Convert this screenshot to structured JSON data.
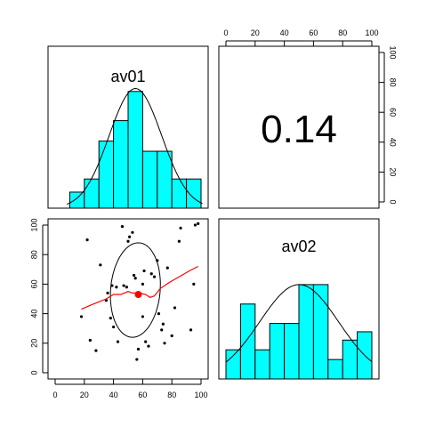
{
  "chart_data": {
    "type": "pairs",
    "variables": [
      "av01",
      "av02"
    ],
    "correlation": {
      "label": "0.14",
      "value": 0.14
    },
    "tick_values": [
      0,
      20,
      40,
      60,
      80,
      100
    ],
    "axis_range": [
      0,
      100
    ],
    "colors": {
      "histogram_fill": "#00ffff",
      "smooth": "#ff0000",
      "centroid": "#ff0000",
      "points": "#000000"
    },
    "histograms": [
      {
        "variable": "av01",
        "breaks": [
          10,
          20,
          30,
          40,
          50,
          60,
          70,
          80,
          90,
          100
        ],
        "heights": [
          0.11,
          0.2,
          0.46,
          0.6,
          0.8,
          0.39,
          0.39,
          0.2,
          0.2
        ]
      },
      {
        "variable": "av02",
        "breaks": [
          0,
          10,
          20,
          30,
          40,
          50,
          60,
          70,
          80,
          90,
          100
        ],
        "heights": [
          0.21,
          0.54,
          0.21,
          0.4,
          0.4,
          0.68,
          0.68,
          0.14,
          0.28,
          0.34
        ]
      }
    ],
    "scatter": {
      "xlabel": "",
      "ylabel": "",
      "x_variable": "av01",
      "y_variable": "av02",
      "xlim": [
        0,
        100
      ],
      "ylim": [
        0,
        100
      ],
      "grid": false,
      "points": [
        [
          18,
          38
        ],
        [
          22,
          90
        ],
        [
          24,
          22
        ],
        [
          28,
          15
        ],
        [
          31,
          73
        ],
        [
          35,
          49
        ],
        [
          36,
          54
        ],
        [
          38,
          37
        ],
        [
          39,
          59
        ],
        [
          40,
          31
        ],
        [
          42,
          58
        ],
        [
          43,
          21
        ],
        [
          46,
          99
        ],
        [
          47,
          59
        ],
        [
          49,
          58
        ],
        [
          50,
          89
        ],
        [
          51,
          92
        ],
        [
          53,
          95
        ],
        [
          54,
          66
        ],
        [
          55,
          64
        ],
        [
          56,
          9
        ],
        [
          57,
          16
        ],
        [
          58,
          52
        ],
        [
          60,
          60
        ],
        [
          60,
          38
        ],
        [
          61,
          69
        ],
        [
          62,
          21
        ],
        [
          64,
          18
        ],
        [
          66,
          67
        ],
        [
          68,
          65
        ],
        [
          70,
          76
        ],
        [
          71,
          40
        ],
        [
          73,
          29
        ],
        [
          74,
          33
        ],
        [
          75,
          20
        ],
        [
          77,
          71
        ],
        [
          80,
          25
        ],
        [
          82,
          44
        ],
        [
          85,
          89
        ],
        [
          86,
          98
        ],
        [
          93,
          29
        ],
        [
          95,
          60
        ],
        [
          96,
          100
        ],
        [
          98,
          101
        ]
      ],
      "centroid": [
        57,
        53
      ],
      "smooth": [
        [
          18,
          43
        ],
        [
          25,
          46
        ],
        [
          30,
          48
        ],
        [
          35,
          50
        ],
        [
          40,
          53
        ],
        [
          45,
          53
        ],
        [
          50,
          55
        ],
        [
          53,
          54
        ],
        [
          55,
          54
        ],
        [
          58,
          54
        ],
        [
          62,
          53
        ],
        [
          65,
          51
        ],
        [
          68,
          52
        ],
        [
          72,
          57
        ],
        [
          78,
          61
        ],
        [
          85,
          65
        ],
        [
          92,
          69
        ],
        [
          98,
          72
        ]
      ],
      "ellipse": {
        "cx": 55,
        "cy": 56,
        "rx": 17,
        "ry": 32
      }
    }
  }
}
